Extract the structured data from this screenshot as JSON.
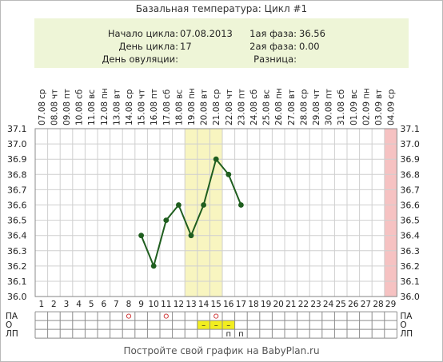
{
  "chart_data": {
    "type": "line",
    "title": "Базальная температура: Цикл #1",
    "y_ticks": [
      "37.1",
      "37.0",
      "36.9",
      "36.8",
      "36.7",
      "36.6",
      "36.5",
      "36.4",
      "36.3",
      "36.2",
      "36.1",
      "36.0"
    ],
    "ylim": [
      36.0,
      37.1
    ],
    "x_days": [
      "1",
      "2",
      "3",
      "4",
      "5",
      "6",
      "7",
      "8",
      "9",
      "10",
      "11",
      "12",
      "13",
      "14",
      "15",
      "16",
      "17",
      "18",
      "19",
      "20",
      "21",
      "22",
      "23",
      "24",
      "25",
      "26",
      "27",
      "28",
      "29"
    ],
    "weekdays": [
      "ср",
      "чт",
      "пт",
      "сб",
      "вс",
      "пн",
      "вт",
      "ср",
      "чт",
      "пт",
      "сб",
      "вс",
      "пн",
      "вт",
      "ср",
      "чт",
      "пт",
      "сб",
      "вс",
      "пн",
      "вт",
      "ср",
      "чт",
      "пт",
      "сб",
      "вс",
      "пн",
      "вт",
      "ср"
    ],
    "dates": [
      "07.08",
      "08.08",
      "09.08",
      "10.08",
      "11.08",
      "12.08",
      "13.08",
      "14.08",
      "15.08",
      "16.08",
      "17.08",
      "18.08",
      "19.08",
      "20.08",
      "21.08",
      "22.08",
      "23.08",
      "24.08",
      "25.08",
      "26.08",
      "27.08",
      "28.08",
      "29.08",
      "30.08",
      "31.08",
      "01.09",
      "02.09",
      "03.09",
      "04.09"
    ],
    "series": [
      {
        "points": [
          {
            "day": 9,
            "value": 36.4
          },
          {
            "day": 10,
            "value": 36.2
          },
          {
            "day": 11,
            "value": 36.5
          },
          {
            "day": 12,
            "value": 36.6
          },
          {
            "day": 13,
            "value": 36.4
          },
          {
            "day": 14,
            "value": 36.6
          },
          {
            "day": 15,
            "value": 36.9
          },
          {
            "day": 16,
            "value": 36.8
          },
          {
            "day": 17,
            "value": 36.6
          }
        ]
      }
    ],
    "highlighted_days": [
      13,
      14,
      15
    ],
    "end_day": 29,
    "row_labels": [
      "ПА",
      "О",
      "ЛП"
    ],
    "pa_marks": [
      8,
      11,
      15
    ],
    "o_marks": [
      14,
      15,
      16
    ],
    "o_mark_symbol": "–",
    "lp_marks": [
      16,
      17
    ],
    "lp_mark_symbol": "п",
    "grid": true,
    "colors": {
      "line": "#1f5e1f",
      "marker": "#1f5e1f",
      "grid": "#cfcfcf",
      "highlight": "#f8f5c0",
      "end_day": "#f6c2c2",
      "pa_mark": "#d04040",
      "o_cell": "#f2ee20",
      "border": "#8c8c8c"
    }
  },
  "info": {
    "cycle_start_label": "Начало цикла:",
    "cycle_start_value": "07.08.2013",
    "cycle_day_label": "День цикла:",
    "cycle_day_value": "17",
    "ovulation_day_label": "День овуляции:",
    "ovulation_day_value": "",
    "phase1_label": "1ая фаза:",
    "phase1_value": "36.56",
    "phase2_label": "2ая фаза:",
    "phase2_value": "0.00",
    "difference_label": "Разница:",
    "difference_value": ""
  },
  "footer": "Постройте свой график на BabyPlan.ru"
}
